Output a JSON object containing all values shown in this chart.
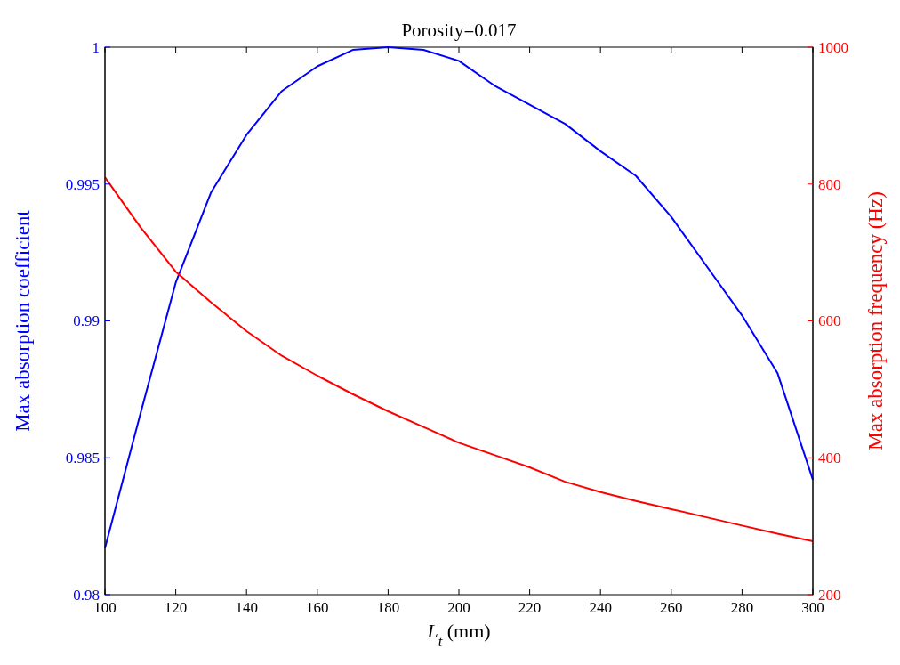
{
  "chart_data": {
    "type": "line",
    "title": "Porosity=0.017",
    "xlabel": "L$_{t}$ (mm)",
    "ylabel": "Max absorption coefficient",
    "y2label": "Max absorption frequency (Hz)",
    "xlim": [
      100,
      300
    ],
    "xticks": [
      100,
      120,
      140,
      160,
      180,
      200,
      220,
      240,
      260,
      280,
      300
    ],
    "ylim": [
      0.98,
      1
    ],
    "yticks": [
      0.98,
      0.985,
      0.99,
      0.995,
      1
    ],
    "y2lim": [
      200,
      1000
    ],
    "y2ticks": [
      200,
      400,
      600,
      800,
      1000
    ],
    "x": [
      100,
      110,
      120,
      130,
      140,
      150,
      160,
      170,
      180,
      190,
      200,
      210,
      220,
      230,
      240,
      250,
      260,
      270,
      280,
      290,
      300
    ],
    "series": [
      {
        "color": "#0000ff",
        "values": [
          0.9817,
          0.9866,
          0.9914,
          0.9947,
          0.9968,
          0.9984,
          0.9993,
          0.9999,
          1.0,
          0.9999,
          0.9995,
          0.9986,
          0.9979,
          0.9972,
          0.9962,
          0.9953,
          0.9938,
          0.992,
          0.9902,
          0.9881,
          0.9842
        ]
      },
      {
        "color": "#ff0000",
        "axis": "y2",
        "values": [
          810,
          737,
          672,
          627,
          585,
          549,
          520,
          493,
          468,
          445,
          422,
          404,
          386,
          365,
          350,
          337,
          325,
          313,
          301,
          289,
          278
        ]
      }
    ]
  }
}
